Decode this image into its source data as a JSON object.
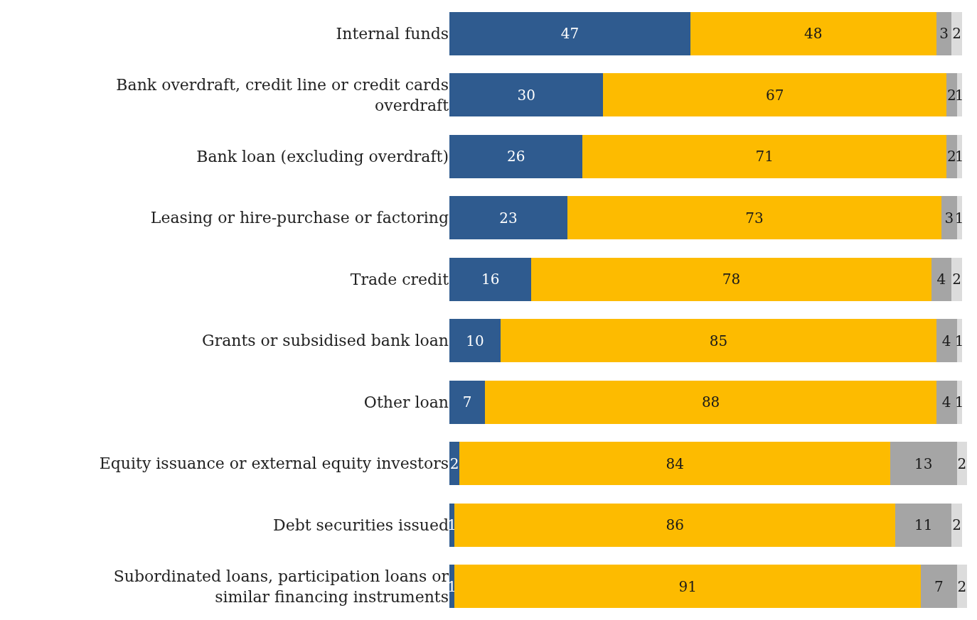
{
  "chart_data": {
    "type": "bar",
    "orientation": "horizontal",
    "stacked": true,
    "data_labels": true,
    "tick_labels": "y",
    "xlim": [
      0,
      101
    ],
    "categories": [
      "Internal funds",
      "Bank overdraft, credit line or credit cards overdraft",
      "Bank loan (excluding overdraft)",
      "Leasing or hire-purchase or factoring",
      "Trade credit",
      "Grants or subsidised bank loan",
      "Other loan",
      "Equity issuance or external equity investors",
      "Debt securities issued",
      "Subordinated loans, participation loans or similar financing instruments"
    ],
    "series": [
      {
        "color": "#2f5b8f",
        "values": [
          47,
          30,
          26,
          23,
          16,
          10,
          7,
          2,
          1,
          1
        ]
      },
      {
        "color": "#fdbb00",
        "values": [
          48,
          67,
          71,
          73,
          78,
          85,
          88,
          84,
          86,
          91
        ]
      },
      {
        "color": "#a5a5a5",
        "values": [
          3,
          2,
          2,
          3,
          4,
          4,
          4,
          13,
          11,
          7
        ]
      },
      {
        "color": "#dcdcdc",
        "values": [
          2,
          1,
          1,
          1,
          2,
          1,
          1,
          2,
          2,
          2
        ]
      }
    ]
  }
}
